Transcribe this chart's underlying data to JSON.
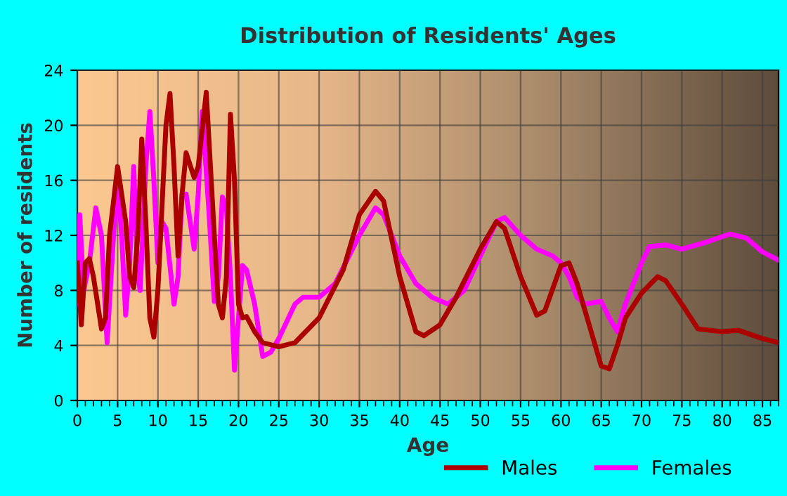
{
  "chart_data": {
    "type": "line",
    "title": "Distribution of Residents' Ages",
    "xlabel": "Age",
    "ylabel": "Number of residents",
    "xlim": [
      0,
      87
    ],
    "xticks": [
      0,
      5,
      10,
      15,
      20,
      25,
      30,
      35,
      40,
      45,
      50,
      55,
      60,
      65,
      70,
      75,
      80,
      85
    ],
    "ylim": [
      0,
      24
    ],
    "yticks": [
      0,
      4,
      8,
      12,
      16,
      20,
      24
    ],
    "grid": true,
    "legend": "bottom",
    "marker": "none",
    "line_style": "solid",
    "series": [
      {
        "name": "Males",
        "color": "#aa0000",
        "x": [
          0,
          0.5,
          1,
          1.5,
          2,
          3,
          3.5,
          4,
          5,
          6,
          6.5,
          7,
          7.5,
          8,
          8.5,
          9,
          9.5,
          10,
          11,
          11.5,
          12,
          12.5,
          13,
          13.5,
          14.5,
          15,
          16,
          17,
          17.5,
          18,
          18.5,
          19,
          19.5,
          20,
          20.5,
          21,
          22,
          23,
          25,
          27,
          30,
          33,
          35,
          37,
          38,
          40,
          42,
          43,
          45,
          47,
          50,
          52,
          53,
          55,
          57,
          58,
          60,
          61,
          62,
          64,
          65,
          66,
          67,
          68,
          70,
          72,
          73,
          75,
          77,
          80,
          82,
          85,
          87
        ],
        "values": [
          10,
          5.5,
          10,
          10.3,
          9,
          5.2,
          6,
          12,
          17,
          13,
          9,
          8.2,
          12,
          19,
          13,
          6,
          4.6,
          8,
          20,
          22.3,
          17,
          10.5,
          15,
          18,
          16.2,
          17,
          22.4,
          12,
          7,
          6,
          9,
          20.8,
          16,
          7,
          6,
          6.1,
          5,
          4.2,
          3.9,
          4.2,
          6,
          9.5,
          13.5,
          15.2,
          14.5,
          9,
          5,
          4.7,
          5.5,
          7.5,
          11,
          13,
          12.5,
          9,
          6.2,
          6.5,
          9.8,
          10,
          8.5,
          4.5,
          2.5,
          2.3,
          4,
          6,
          7.8,
          9,
          8.7,
          7,
          5.2,
          5,
          5.1,
          4.5,
          4.2
        ]
      },
      {
        "name": "Females",
        "color": "#ff00ff",
        "x": [
          0,
          0.3,
          0.8,
          1.5,
          2.3,
          3,
          3.7,
          4.5,
          5,
          5.5,
          6,
          6.5,
          7,
          7.5,
          7.8,
          8.5,
          9,
          9.5,
          10,
          10.5,
          11,
          12,
          12.5,
          13,
          13.5,
          14.5,
          15,
          15.5,
          16.3,
          17,
          17.5,
          18,
          18.5,
          19,
          19.5,
          20,
          20.5,
          21,
          22,
          23,
          24,
          25,
          27,
          28,
          30,
          32,
          35,
          37,
          38,
          40,
          42,
          44,
          46,
          48,
          50,
          52,
          53,
          55,
          57,
          59,
          60,
          61,
          62,
          63,
          65,
          66,
          67,
          68,
          70,
          71,
          73,
          75,
          78,
          81,
          83,
          85,
          87
        ],
        "values": [
          7,
          13.5,
          8,
          10,
          14,
          12,
          4.2,
          12,
          16,
          12,
          6.2,
          10,
          17,
          9,
          8,
          17,
          21,
          16,
          10,
          13,
          12.5,
          7,
          9,
          15,
          15,
          11,
          15,
          21,
          14,
          7.2,
          9,
          14.8,
          14,
          9,
          2.2,
          6,
          9.8,
          9.5,
          7,
          3.2,
          3.5,
          4.5,
          7,
          7.5,
          7.5,
          8.5,
          12,
          14,
          13.5,
          10.5,
          8.5,
          7.5,
          7,
          8,
          10.5,
          13,
          13.3,
          12,
          11,
          10.5,
          10,
          9,
          7.5,
          7,
          7.2,
          6,
          5,
          7,
          10,
          11.2,
          11.3,
          11,
          11.5,
          12.1,
          11.8,
          10.8,
          10.2
        ]
      }
    ]
  }
}
